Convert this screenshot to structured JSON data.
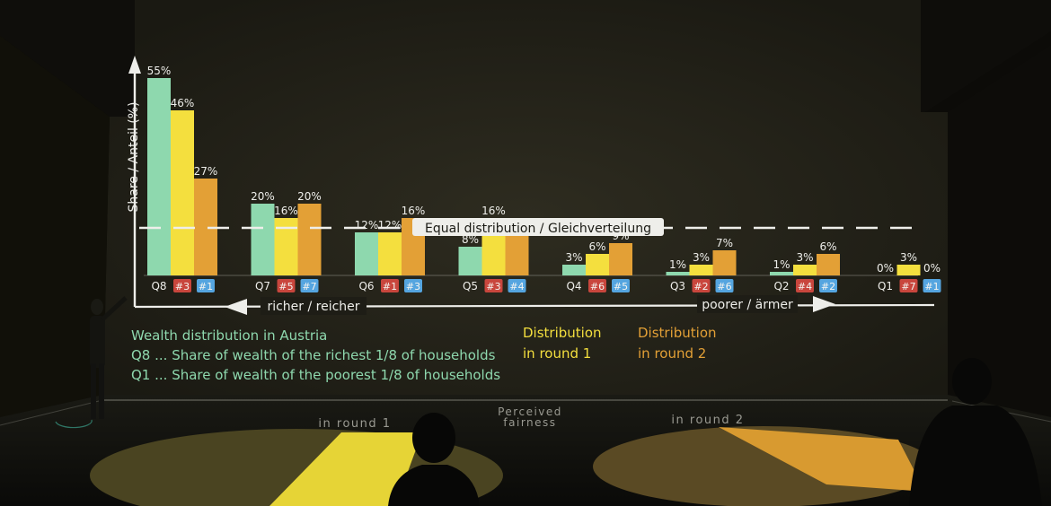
{
  "chart_data": {
    "type": "bar",
    "categories": [
      "Q8",
      "Q7",
      "Q6",
      "Q5",
      "Q4",
      "Q3",
      "Q2",
      "Q1"
    ],
    "series": [
      {
        "key": "austria",
        "values": [
          55,
          20,
          12,
          8,
          3,
          1,
          1,
          0
        ],
        "labels": [
          "55%",
          "20%",
          "12%",
          "8%",
          "3%",
          "1%",
          "1%",
          "0%"
        ]
      },
      {
        "name": "Distribution in round 1",
        "key": "round1",
        "values": [
          46,
          16,
          12,
          16,
          6,
          3,
          3,
          3
        ],
        "labels": [
          "46%",
          "16%",
          "12%",
          "16%",
          "6%",
          "3%",
          "3%",
          "3%"
        ],
        "ranks": [
          "#3",
          "#5",
          "#1",
          "#3",
          "#6",
          "#2",
          "#4",
          "#7"
        ]
      },
      {
        "name": "Distribution in round 2",
        "key": "round2",
        "values": [
          27,
          20,
          16,
          16,
          9,
          7,
          6,
          0
        ],
        "labels": [
          "27%",
          "20%",
          "16%",
          "",
          "9%",
          "7%",
          "6%",
          "0%"
        ],
        "ranks": [
          "#1",
          "#7",
          "#3",
          "#4",
          "#5",
          "#6",
          "#2",
          "#1"
        ]
      }
    ],
    "rank_badges": [
      "red",
      "blue",
      "none"
    ],
    "equal_share": 12.5,
    "equal_label": "Equal distribution / Gleichverteilung",
    "ylabel": "Share / Anteil (%)",
    "xlabel_left": "richer / reicher",
    "xlabel_right": "poorer / ärmer",
    "ylim": [
      0,
      60
    ],
    "grid": false,
    "colors": {
      "austria": "#8ed8ae",
      "round1": "#f4df3e",
      "round2": "#e3a036",
      "badge_red": "#c9463d",
      "badge_blue": "#55a5e0",
      "badge_none": "#55544c"
    }
  },
  "legend": {
    "austria_lines": [
      "Wealth distribution in Austria",
      "Q8 ... Share of wealth of the richest 1/8 of households",
      "Q1 ... Share of wealth of the poorest 1/8 of households"
    ],
    "round1_lines": [
      "Distribution",
      "in round 1"
    ],
    "round2_lines": [
      "Distribution",
      "in round 2"
    ]
  },
  "floor": {
    "label_round1": "in round 1",
    "label_perceived": [
      "Perceived",
      "fairness"
    ],
    "label_round2": "in round 2"
  }
}
